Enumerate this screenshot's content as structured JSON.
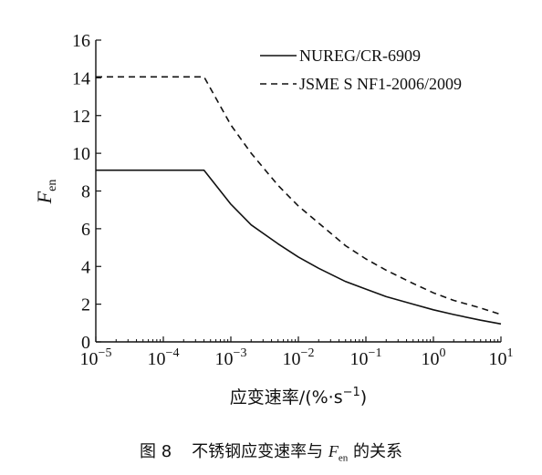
{
  "chart_data": {
    "type": "line",
    "x_scale": "log",
    "x_tick_exponents": [
      -5,
      -4,
      -3,
      -2,
      -1,
      0,
      1
    ],
    "x_tick_base": "10",
    "xlim": [
      1e-05,
      10
    ],
    "ylim": [
      0,
      16
    ],
    "y_ticks": [
      0,
      2,
      4,
      6,
      8,
      10,
      12,
      14,
      16
    ],
    "y_tick_labels": [
      "0",
      "2",
      "4",
      "6",
      "8",
      "10",
      "12",
      "14",
      "16"
    ],
    "ylabel_main": "F",
    "ylabel_sub": "en",
    "xlabel_prefix": "应变速率/(%·s",
    "xlabel_sup": "−1",
    "xlabel_suffix": ")",
    "legend_position": "top-right",
    "series": [
      {
        "name": "NUREG/CR-6909",
        "style": "solid",
        "x": [
          1e-05,
          0.0004,
          0.001,
          0.002,
          0.005,
          0.01,
          0.02,
          0.05,
          0.1,
          0.2,
          0.5,
          1,
          2,
          5,
          10
        ],
        "y": [
          9.1,
          9.1,
          7.3,
          6.2,
          5.2,
          4.5,
          3.9,
          3.2,
          2.8,
          2.4,
          2.0,
          1.7,
          1.45,
          1.15,
          0.95
        ]
      },
      {
        "name": "JSME S NF1-2006/2009",
        "style": "dashed",
        "x": [
          1e-05,
          0.0004,
          0.001,
          0.002,
          0.005,
          0.01,
          0.02,
          0.05,
          0.1,
          0.2,
          0.5,
          1,
          2,
          5,
          10
        ],
        "y": [
          14.05,
          14.05,
          11.5,
          10.0,
          8.3,
          7.2,
          6.3,
          5.1,
          4.4,
          3.8,
          3.1,
          2.6,
          2.2,
          1.8,
          1.45
        ]
      }
    ]
  },
  "caption": {
    "figure_number": "图 8",
    "text_before": "不锈钢应变速率与 ",
    "symbol_main": "F",
    "symbol_sub": "en",
    "text_after": " 的关系"
  },
  "colors": {
    "ink": "#111111"
  }
}
